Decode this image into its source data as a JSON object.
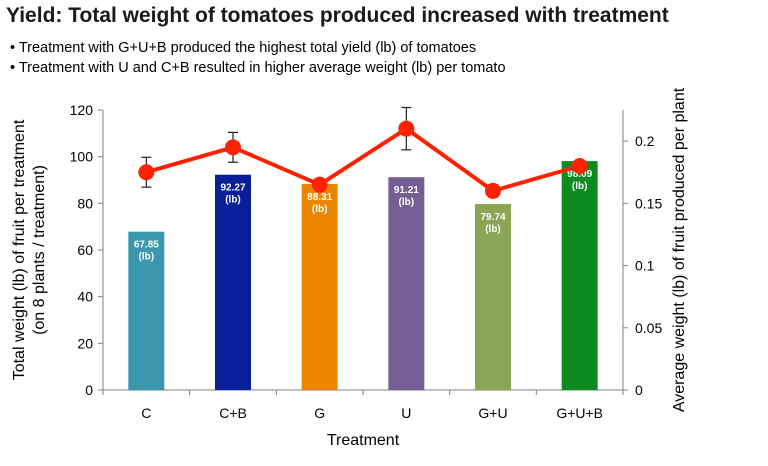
{
  "title": "Yield: Total weight of tomatoes produced increased with treatment",
  "bullets": [
    "• Treatment with G+U+B produced the highest total yield (lb) of tomatoes",
    "• Treatment with U and C+B resulted in higher average weight (lb) per tomato"
  ],
  "chart_data": {
    "type": "bar",
    "categories": [
      "C",
      "C+B",
      "G",
      "U",
      "G+U",
      "G+U+B"
    ],
    "series": [
      {
        "values": [
          67.85,
          92.27,
          88.31,
          91.21,
          79.74,
          98.09
        ],
        "value_labels": [
          "67.85",
          "92.27",
          "88.31",
          "91.21",
          "79.74",
          "98.09"
        ],
        "unit_label": "(lb)",
        "colors": [
          "#3a97ad",
          "#07209a",
          "#ec8600",
          "#745e93",
          "#8aa556",
          "#0c8a1f"
        ],
        "axis": "left"
      },
      {
        "values": [
          0.175,
          0.195,
          0.165,
          0.21,
          0.16,
          0.18
        ],
        "error": [
          0.012,
          0.012,
          0.004,
          0.017,
          0.005,
          0.004
        ],
        "type": "line",
        "color": "#ff2200",
        "axis": "right"
      }
    ],
    "xlabel": "Treatment",
    "ylabel": "Total weight (lb) of fruit per treatment (on 8 plants / treatment)",
    "ylabel_lines": [
      "Total weight (lb) of fruit per treatment",
      "(on 8 plants / treatment)"
    ],
    "y2label": "Average weight (lb) of fruit produced per plant",
    "ylim": [
      0,
      120
    ],
    "y_ticks": [
      0,
      20,
      40,
      60,
      80,
      100,
      120
    ],
    "y2lim": [
      0,
      0.225
    ],
    "y2_ticks": [
      "0",
      "0.05",
      "0.1",
      "0.15",
      "0.2"
    ],
    "y2_tick_values": [
      0,
      0.05,
      0.1,
      0.15,
      0.2
    ],
    "grid": false
  }
}
